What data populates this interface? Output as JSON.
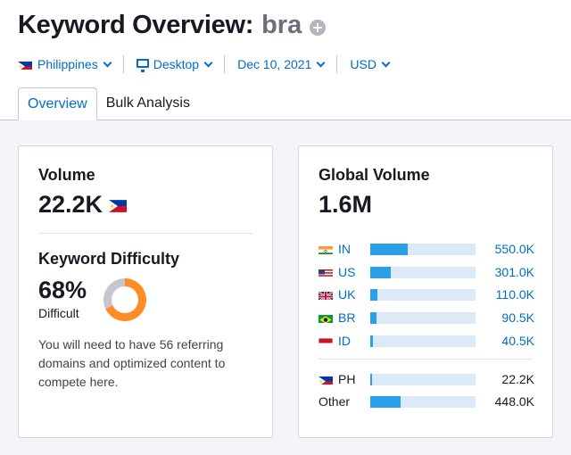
{
  "header": {
    "title": "Keyword Overview:",
    "keyword": "bra"
  },
  "filters": {
    "country": "Philippines",
    "device": "Desktop",
    "date": "Dec 10, 2021",
    "currency": "USD"
  },
  "tabs": [
    {
      "label": "Overview",
      "active": true
    },
    {
      "label": "Bulk Analysis",
      "active": false
    }
  ],
  "volume": {
    "label": "Volume",
    "value": "22.2K"
  },
  "keyword_difficulty": {
    "label": "Keyword Difficulty",
    "value": "68%",
    "percent": 68,
    "level": "Difficult",
    "description": "You will need to have 56 referring domains and optimized content to compete here.",
    "color": "#ff8c26"
  },
  "global_volume": {
    "label": "Global Volume",
    "value": "1.6M",
    "countries": [
      {
        "code": "IN",
        "value": "550.0K",
        "share": 0.355
      },
      {
        "code": "US",
        "value": "301.0K",
        "share": 0.195
      },
      {
        "code": "UK",
        "value": "110.0K",
        "share": 0.071
      },
      {
        "code": "BR",
        "value": "90.5K",
        "share": 0.058
      },
      {
        "code": "ID",
        "value": "40.5K",
        "share": 0.026
      }
    ],
    "local": {
      "code": "PH",
      "value": "22.2K",
      "share": 0.014
    },
    "other": {
      "code": "Other",
      "value": "448.0K",
      "share": 0.29
    }
  }
}
